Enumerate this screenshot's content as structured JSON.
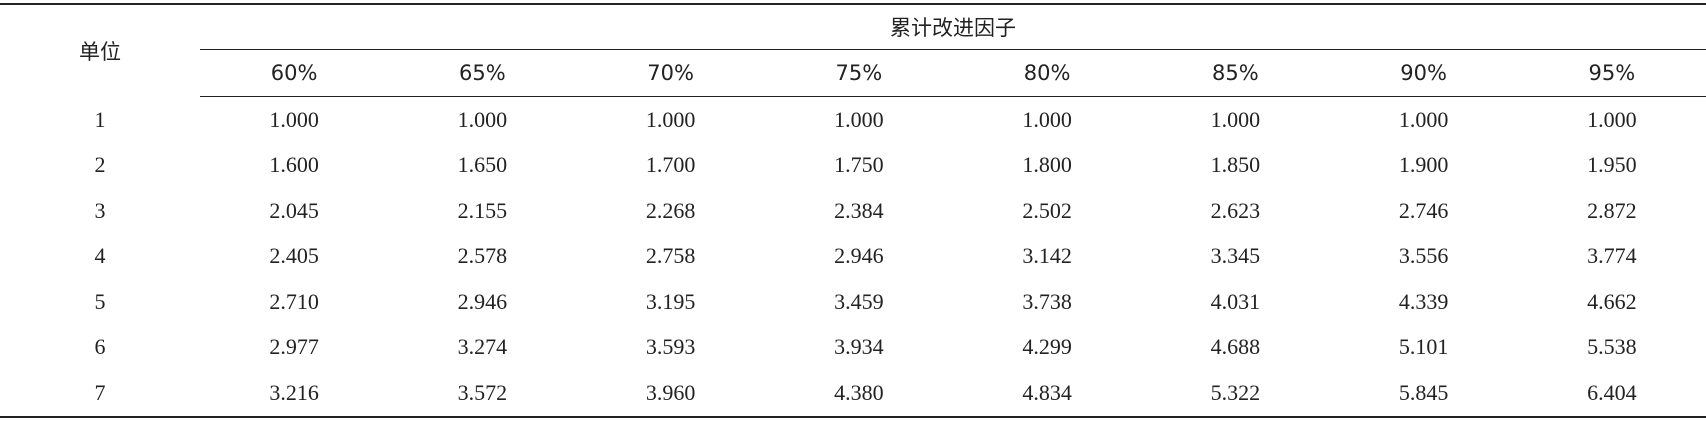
{
  "header": {
    "unit": "单位",
    "group": "累计改进因子",
    "columns": [
      "60%",
      "65%",
      "70%",
      "75%",
      "80%",
      "85%",
      "90%",
      "95%"
    ]
  },
  "table": {
    "rows": [
      [
        "1",
        "1.000",
        "1.000",
        "1.000",
        "1.000",
        "1.000",
        "1.000",
        "1.000",
        "1.000"
      ],
      [
        "2",
        "1.600",
        "1.650",
        "1.700",
        "1.750",
        "1.800",
        "1.850",
        "1.900",
        "1.950"
      ],
      [
        "3",
        "2.045",
        "2.155",
        "2.268",
        "2.384",
        "2.502",
        "2.623",
        "2.746",
        "2.872"
      ],
      [
        "4",
        "2.405",
        "2.578",
        "2.758",
        "2.946",
        "3.142",
        "3.345",
        "3.556",
        "3.774"
      ],
      [
        "5",
        "2.710",
        "2.946",
        "3.195",
        "3.459",
        "3.738",
        "4.031",
        "4.339",
        "4.662"
      ],
      [
        "6",
        "2.977",
        "3.274",
        "3.593",
        "3.934",
        "4.299",
        "4.688",
        "5.101",
        "5.538"
      ],
      [
        "7",
        "3.216",
        "3.572",
        "3.960",
        "4.380",
        "4.834",
        "5.322",
        "5.845",
        "6.404"
      ]
    ]
  }
}
